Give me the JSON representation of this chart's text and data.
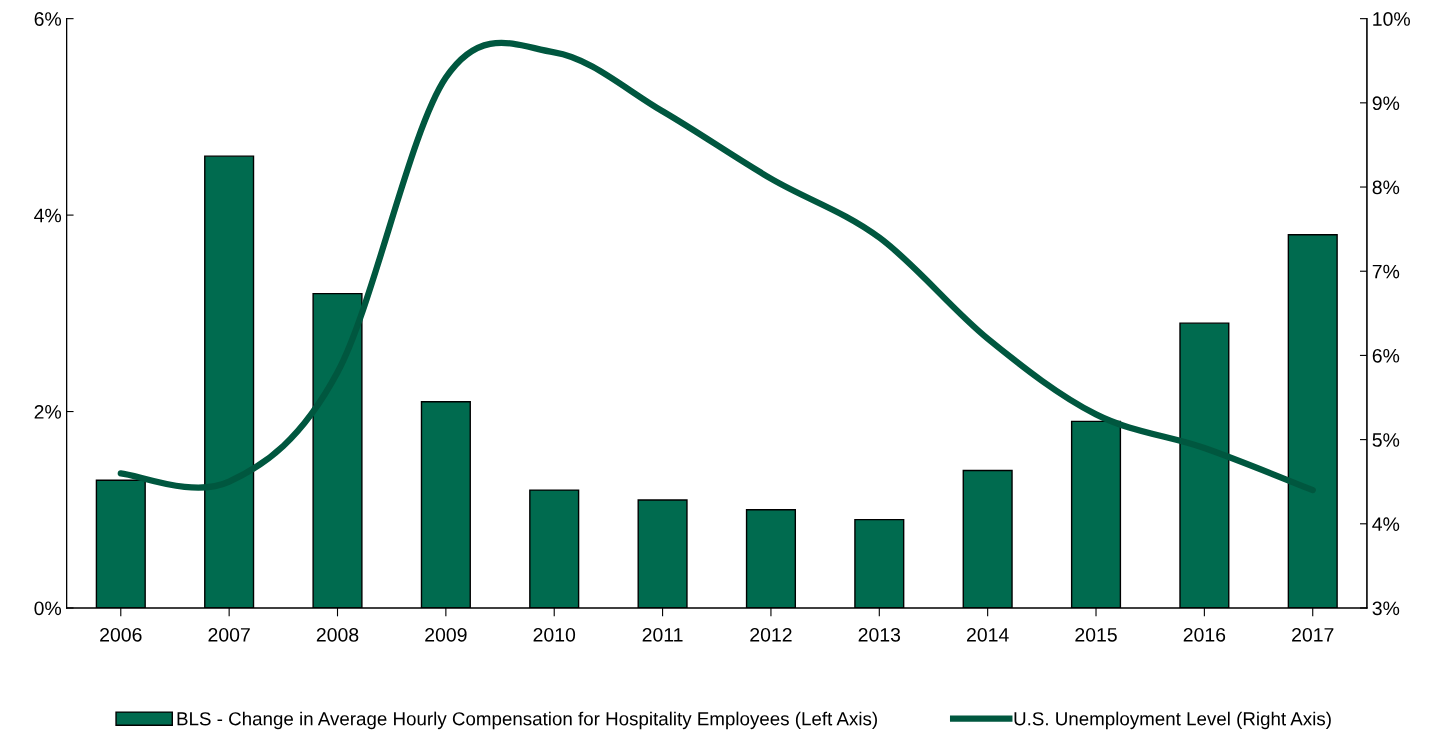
{
  "chart_data": {
    "type": "bar",
    "categories": [
      "2006",
      "2007",
      "2008",
      "2009",
      "2010",
      "2011",
      "2012",
      "2013",
      "2014",
      "2015",
      "2016",
      "2017"
    ],
    "series": [
      {
        "name": "BLS - Change in Average Hourly Compensation for Hospitality Employees (Left Axis)",
        "color": "#006b4f",
        "values": [
          1.3,
          4.6,
          3.2,
          2.1,
          1.2,
          1.1,
          1.0,
          0.9,
          1.4,
          1.9,
          2.9,
          3.8
        ]
      },
      {
        "name": "U.S. Unemployment Level (Right Axis)",
        "type": "line",
        "axis": "y2",
        "color": "#00573f",
        "values": [
          4.6,
          4.5,
          5.8,
          9.3,
          9.6,
          8.9,
          8.1,
          7.4,
          6.2,
          5.3,
          4.9,
          4.4
        ]
      }
    ],
    "ylim": [
      0,
      6
    ],
    "yticks": [
      {
        "value": 0,
        "label": "0%"
      },
      {
        "value": 2,
        "label": "2%"
      },
      {
        "value": 4,
        "label": "4%"
      },
      {
        "value": 6,
        "label": "6%"
      }
    ],
    "y2lim": [
      3,
      10
    ],
    "y2ticks": [
      {
        "value": 3,
        "label": "3%"
      },
      {
        "value": 4,
        "label": "4%"
      },
      {
        "value": 5,
        "label": "5%"
      },
      {
        "value": 6,
        "label": "6%"
      },
      {
        "value": 7,
        "label": "7%"
      },
      {
        "value": 8,
        "label": "8%"
      },
      {
        "value": 9,
        "label": "9%"
      },
      {
        "value": 10,
        "label": "10%"
      }
    ],
    "grid": false,
    "legend": "bottom",
    "line_style": "solid",
    "marker": "none"
  }
}
